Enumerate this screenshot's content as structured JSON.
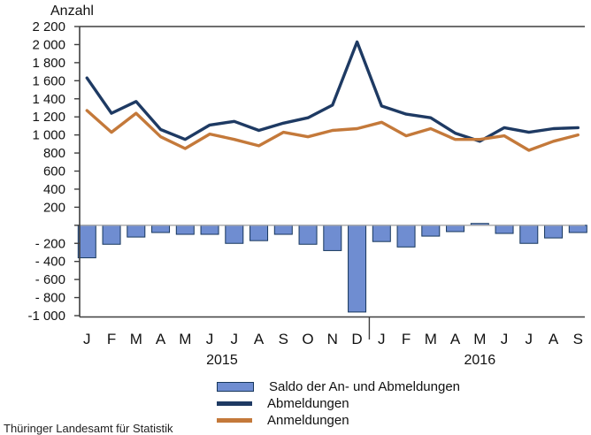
{
  "title": "Anzahl",
  "footer": "Thüringer Landesamt für Statistik",
  "colors": {
    "abmeldungen_line": "#1E3A63",
    "anmeldungen_line": "#C4793A",
    "saldo_bar_fill": "#6F8DD1",
    "saldo_bar_border": "#17375D",
    "zero_line": "#A8A8A8",
    "axis": "#3F3F3F",
    "text": "#111111"
  },
  "legend": {
    "items": [
      {
        "label": "Saldo der An- und Abmeldungen",
        "swatch": "bar"
      },
      {
        "label": "Abmeldungen",
        "swatch": "line-dark"
      },
      {
        "label": "Anmeldungen",
        "swatch": "line-orange"
      }
    ]
  },
  "chart_data": {
    "type": "bar+line",
    "title": "Anzahl",
    "categories": [
      "J",
      "F",
      "M",
      "A",
      "M",
      "J",
      "J",
      "A",
      "S",
      "O",
      "N",
      "D",
      "J",
      "F",
      "M",
      "A",
      "M",
      "J",
      "J",
      "A",
      "S"
    ],
    "year_groups": [
      {
        "label": "2015",
        "from": 0,
        "to": 11
      },
      {
        "label": "2016",
        "from": 12,
        "to": 20
      }
    ],
    "series": [
      {
        "name": "Saldo der An- und Abmeldungen",
        "type": "bar",
        "values": [
          -360,
          -210,
          -130,
          -80,
          -100,
          -100,
          -200,
          -170,
          -100,
          -210,
          -280,
          -960,
          -180,
          -240,
          -120,
          -70,
          20,
          -90,
          -200,
          -140,
          -80
        ]
      },
      {
        "name": "Abmeldungen",
        "type": "line",
        "values": [
          1630,
          1240,
          1370,
          1060,
          950,
          1110,
          1150,
          1050,
          1130,
          1190,
          1330,
          2030,
          1320,
          1230,
          1190,
          1020,
          930,
          1080,
          1030,
          1070,
          1080
        ]
      },
      {
        "name": "Anmeldungen",
        "type": "line",
        "values": [
          1270,
          1030,
          1240,
          980,
          850,
          1010,
          950,
          880,
          1030,
          980,
          1050,
          1070,
          1140,
          990,
          1070,
          950,
          950,
          990,
          830,
          930,
          1000
        ]
      }
    ],
    "ylim": [
      -1000,
      2200
    ],
    "ytick_step": 200,
    "yticks": [
      {
        "v": 2200,
        "label": "2 200"
      },
      {
        "v": 2000,
        "label": "2 000"
      },
      {
        "v": 1800,
        "label": "1 800"
      },
      {
        "v": 1600,
        "label": "1 600"
      },
      {
        "v": 1400,
        "label": "1 400"
      },
      {
        "v": 1200,
        "label": "1 200"
      },
      {
        "v": 1000,
        "label": "1 000"
      },
      {
        "v": 800,
        "label": "800"
      },
      {
        "v": 600,
        "label": "600"
      },
      {
        "v": 400,
        "label": "400"
      },
      {
        "v": 200,
        "label": "200"
      },
      {
        "v": 0,
        "label": ""
      },
      {
        "v": -200,
        "label": "- 200"
      },
      {
        "v": -400,
        "label": "- 400"
      },
      {
        "v": -600,
        "label": "- 600"
      },
      {
        "v": -800,
        "label": "- 800"
      },
      {
        "v": -1000,
        "label": "-1 000"
      }
    ],
    "grid": false,
    "legend_position": "bottom"
  }
}
